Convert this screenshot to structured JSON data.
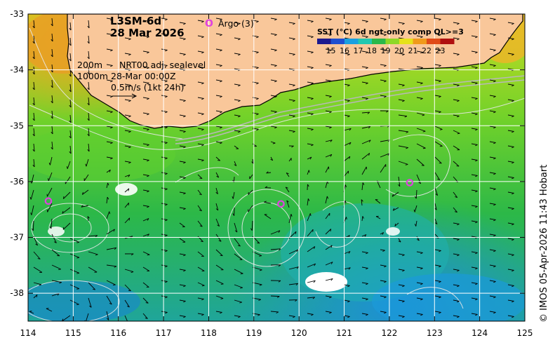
{
  "product": "L3SM-6d",
  "date": "28 Mar 2026",
  "argo": {
    "marker": "O",
    "label": "Argo (3)",
    "color": "#e040e0"
  },
  "legend": {
    "title": "SST (°C) 6d ngt-only comp QL>=3",
    "ticks": [
      "15",
      "16",
      "17",
      "18",
      "19",
      "20",
      "21",
      "22",
      "23"
    ],
    "colors": [
      "#1c1a8f",
      "#1f4fd0",
      "#1aa0e0",
      "#22c8b0",
      "#2ab84a",
      "#8ed826",
      "#e6e21a",
      "#f09a1a",
      "#e04a18",
      "#b01010"
    ]
  },
  "contours": {
    "line1": "200m",
    "line2": "1000m"
  },
  "info": {
    "line1": "NRT00 adj. sealevel",
    "line2": "28-Mar 00:00Z"
  },
  "scale": {
    "label": "0.5m/s (1kt 24h)"
  },
  "credit": "© IMOS 05-Apr-2026 11:43 Hobart",
  "axes": {
    "x_ticks": [
      "114",
      "115",
      "116",
      "117",
      "118",
      "119",
      "120",
      "121",
      "122",
      "123",
      "124",
      "125"
    ],
    "y_ticks": [
      "-33",
      "-34",
      "-35",
      "-36",
      "-37",
      "-38"
    ],
    "xlim": [
      114,
      125
    ],
    "ylim": [
      -38.5,
      -33
    ]
  },
  "argo_floats": [
    {
      "lon": 114.45,
      "lat": -36.35
    },
    {
      "lon": 119.6,
      "lat": -36.4
    },
    {
      "lon": 122.45,
      "lat": -36.02
    }
  ],
  "colors": {
    "land": "#f9c79a",
    "coast": "#000000",
    "contour": "#e8e8e8",
    "grid": "#ffffff"
  }
}
